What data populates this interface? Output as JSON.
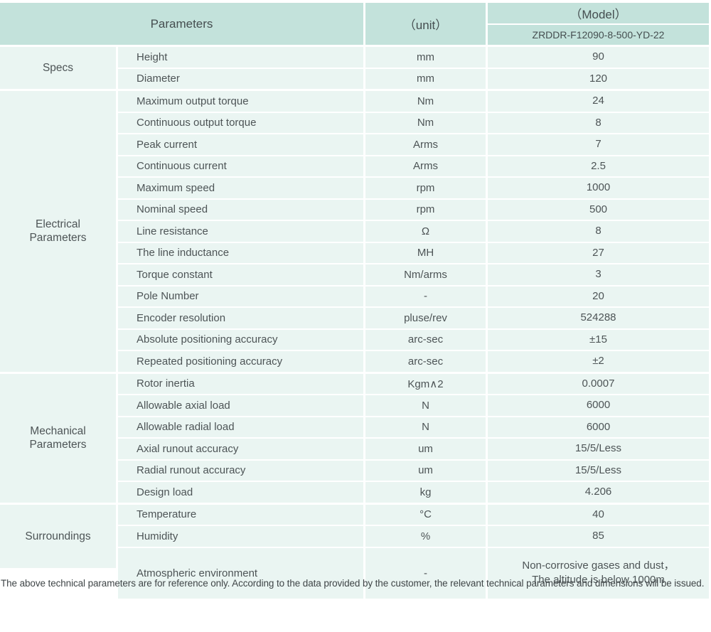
{
  "colors": {
    "header_bg": "#c3e2db",
    "row_bg": "#eaf5f2",
    "text": "#4d5456"
  },
  "header": {
    "parameters_label": "Parameters",
    "unit_label": "（unit）",
    "model_label": "（Model）",
    "model_value": "ZRDDR-F12090-8-500-YD-22"
  },
  "table": {
    "sections": [
      {
        "id": "specs",
        "label": "Specs",
        "rows": [
          {
            "param": "Height",
            "unit": "mm",
            "value": "90"
          },
          {
            "param": "Diameter",
            "unit": "mm",
            "value": "120"
          }
        ]
      },
      {
        "id": "electrical-parameters",
        "label": "Electrical\nParameters",
        "rows": [
          {
            "param": "Maximum output torque",
            "unit": "Nm",
            "value": "24"
          },
          {
            "param": "Continuous output torque",
            "unit": "Nm",
            "value": "8"
          },
          {
            "param": "Peak current",
            "unit": "Arms",
            "value": "7"
          },
          {
            "param": "Continuous current",
            "unit": "Arms",
            "value": "2.5"
          },
          {
            "param": "Maximum speed",
            "unit": "rpm",
            "value": "1000"
          },
          {
            "param": "Nominal speed",
            "unit": "rpm",
            "value": "500"
          },
          {
            "param": "Line resistance",
            "unit": "Ω",
            "value": "8"
          },
          {
            "param": "The line inductance",
            "unit": "MH",
            "value": "27"
          },
          {
            "param": "Torque constant",
            "unit": "Nm/arms",
            "value": "3"
          },
          {
            "param": "Pole Number",
            "unit": "-",
            "value": "20"
          },
          {
            "param": "Encoder resolution",
            "unit": "pluse/rev",
            "value": "524288"
          },
          {
            "param": "Absolute positioning accuracy",
            "unit": "arc-sec",
            "value": "±15"
          },
          {
            "param": "Repeated positioning accuracy",
            "unit": "arc-sec",
            "value": "±2"
          }
        ]
      },
      {
        "id": "mechanical-parameters",
        "label": "Mechanical\nParameters",
        "rows": [
          {
            "param": "Rotor inertia",
            "unit": "Kgm∧2",
            "value": "0.0007"
          },
          {
            "param": "Allowable axial load",
            "unit": "N",
            "value": "6000"
          },
          {
            "param": "Allowable radial load",
            "unit": "N",
            "value": "6000"
          },
          {
            "param": "Axial runout accuracy",
            "unit": "um",
            "value": "15/5/Less"
          },
          {
            "param": "Radial runout accuracy",
            "unit": "um",
            "value": "15/5/Less"
          },
          {
            "param": "Design load",
            "unit": "kg",
            "value": "4.206"
          }
        ]
      },
      {
        "id": "surroundings",
        "label": "Surroundings",
        "rows": [
          {
            "param": "Temperature",
            "unit": "°C",
            "value": "40"
          },
          {
            "param": "Humidity",
            "unit": "%",
            "value": "85"
          },
          {
            "param": "Atmospheric environment",
            "unit": "-",
            "value": "Non-corrosive gases and dust，\nThe altitude is below 1000m"
          }
        ]
      }
    ]
  },
  "footer": {
    "note": "The above technical parameters are for reference only. According to the data provided by the customer, the relevant technical parameters and dimensions will be issued."
  }
}
